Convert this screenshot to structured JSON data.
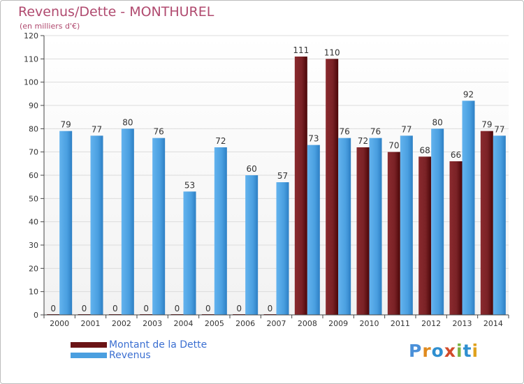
{
  "header": {
    "title": "Revenus/Dette - MONTHUREL",
    "subtitle": "(en milliers d'€)"
  },
  "legend": {
    "items": [
      {
        "label": "Montant de la Dette",
        "color": "#6b1416"
      },
      {
        "label": "Revenus",
        "color": "#4a9fe0"
      }
    ]
  },
  "logo": {
    "text": "Proxiti",
    "letters": [
      "P",
      "r",
      "o",
      "x",
      "i",
      "t",
      "i"
    ],
    "colors": [
      "#4a90d9",
      "#e08a1e",
      "#2f8fd0",
      "#d24b2a",
      "#7cb342",
      "#2f8fd0",
      "#e0a21e"
    ]
  },
  "chart_data": {
    "type": "bar",
    "categories": [
      "2000",
      "2001",
      "2002",
      "2003",
      "2004",
      "2005",
      "2006",
      "2007",
      "2008",
      "2009",
      "2010",
      "2011",
      "2012",
      "2013",
      "2014"
    ],
    "series": [
      {
        "name": "Montant de la Dette",
        "color": "#6b1416",
        "values": [
          0,
          0,
          0,
          0,
          0,
          0,
          0,
          0,
          111,
          110,
          72,
          70,
          68,
          66,
          79
        ]
      },
      {
        "name": "Revenus",
        "color": "#4a9fe0",
        "values": [
          79,
          77,
          80,
          76,
          53,
          72,
          60,
          57,
          73,
          76,
          76,
          77,
          80,
          92,
          77
        ]
      }
    ],
    "ylim": [
      0,
      120
    ],
    "yticks": [
      0,
      10,
      20,
      30,
      40,
      50,
      60,
      70,
      80,
      90,
      100,
      110,
      120
    ],
    "grid": true,
    "legend_position": "bottom-left"
  }
}
